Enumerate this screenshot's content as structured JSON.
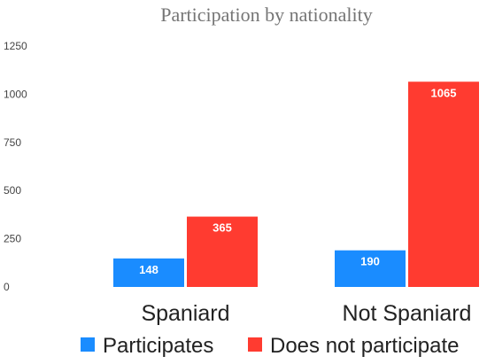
{
  "chart_data": {
    "type": "bar",
    "title": "Participation by nationality",
    "categories": [
      "Spaniard",
      "Not Spaniard"
    ],
    "series": [
      {
        "name": "Participates",
        "values": [
          148,
          190
        ],
        "color": "#1a8cff"
      },
      {
        "name": "Does not participate",
        "values": [
          365,
          1065
        ],
        "color": "#ff3b30"
      }
    ],
    "yticks": [
      "0",
      "250",
      "500",
      "750",
      "1000",
      "1250"
    ],
    "ylim": [
      0,
      1250
    ],
    "grid": false,
    "legend_position": "bottom"
  }
}
